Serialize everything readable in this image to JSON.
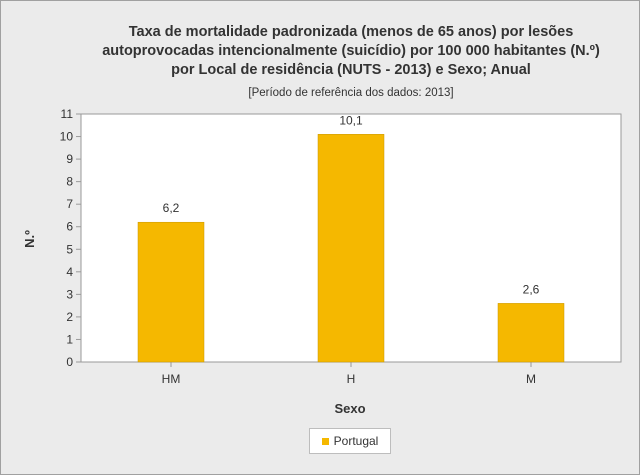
{
  "chart_data": {
    "type": "bar",
    "title_lines": [
      "Taxa de mortalidade padronizada (menos de 65 anos) por lesões",
      "autoprovocadas intencionalmente (suicídio) por 100 000 habitantes (N.º)",
      "por Local de residência (NUTS - 2013) e Sexo; Anual"
    ],
    "subtitle": "[Período de referência dos dados: 2013]",
    "xlabel": "Sexo",
    "ylabel": "N.º",
    "categories": [
      "HM",
      "H",
      "M"
    ],
    "series": [
      {
        "name": "Portugal",
        "values": [
          6.2,
          10.1,
          2.6
        ],
        "labels": [
          "6,2",
          "10,1",
          "2,6"
        ],
        "color": "#f5b800"
      }
    ],
    "ylim": [
      0,
      11
    ],
    "yticks": [
      "0",
      "1",
      "2",
      "3",
      "4",
      "5",
      "6",
      "7",
      "8",
      "9",
      "10",
      "11"
    ],
    "grid": false,
    "legend_position": "bottom-center"
  }
}
